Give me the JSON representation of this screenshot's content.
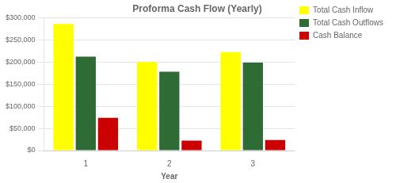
{
  "chart_data": {
    "type": "bar",
    "title": "Proforma Cash Flow (Yearly)",
    "x_label": "Year",
    "categories": [
      "1",
      "2",
      "3"
    ],
    "series": [
      {
        "name": "Total Cash Inflow",
        "color": "#FFFF00",
        "values": [
          285750,
          200095,
          222453
        ]
      },
      {
        "name": "Total Cash Outflows",
        "color": "#2E6B35",
        "values": [
          212139,
          177891,
          198888
        ]
      },
      {
        "name": "Cash Balance",
        "color": "#CC0000",
        "values": [
          73811,
          22293,
          23775
        ]
      }
    ],
    "ylim": [
      0,
      300000
    ],
    "yticks": [
      {
        "value": 0,
        "label": "$0"
      },
      {
        "value": 50000,
        "label": "$50,000"
      },
      {
        "value": 100000,
        "label": "$100,000"
      },
      {
        "value": 150000,
        "label": "$150,000"
      },
      {
        "value": 200000,
        "label": "$200,000"
      },
      {
        "value": 250000,
        "label": "$250,000"
      },
      {
        "value": 300000,
        "label": "$300,000"
      }
    ],
    "grid": true,
    "legend": "right"
  }
}
